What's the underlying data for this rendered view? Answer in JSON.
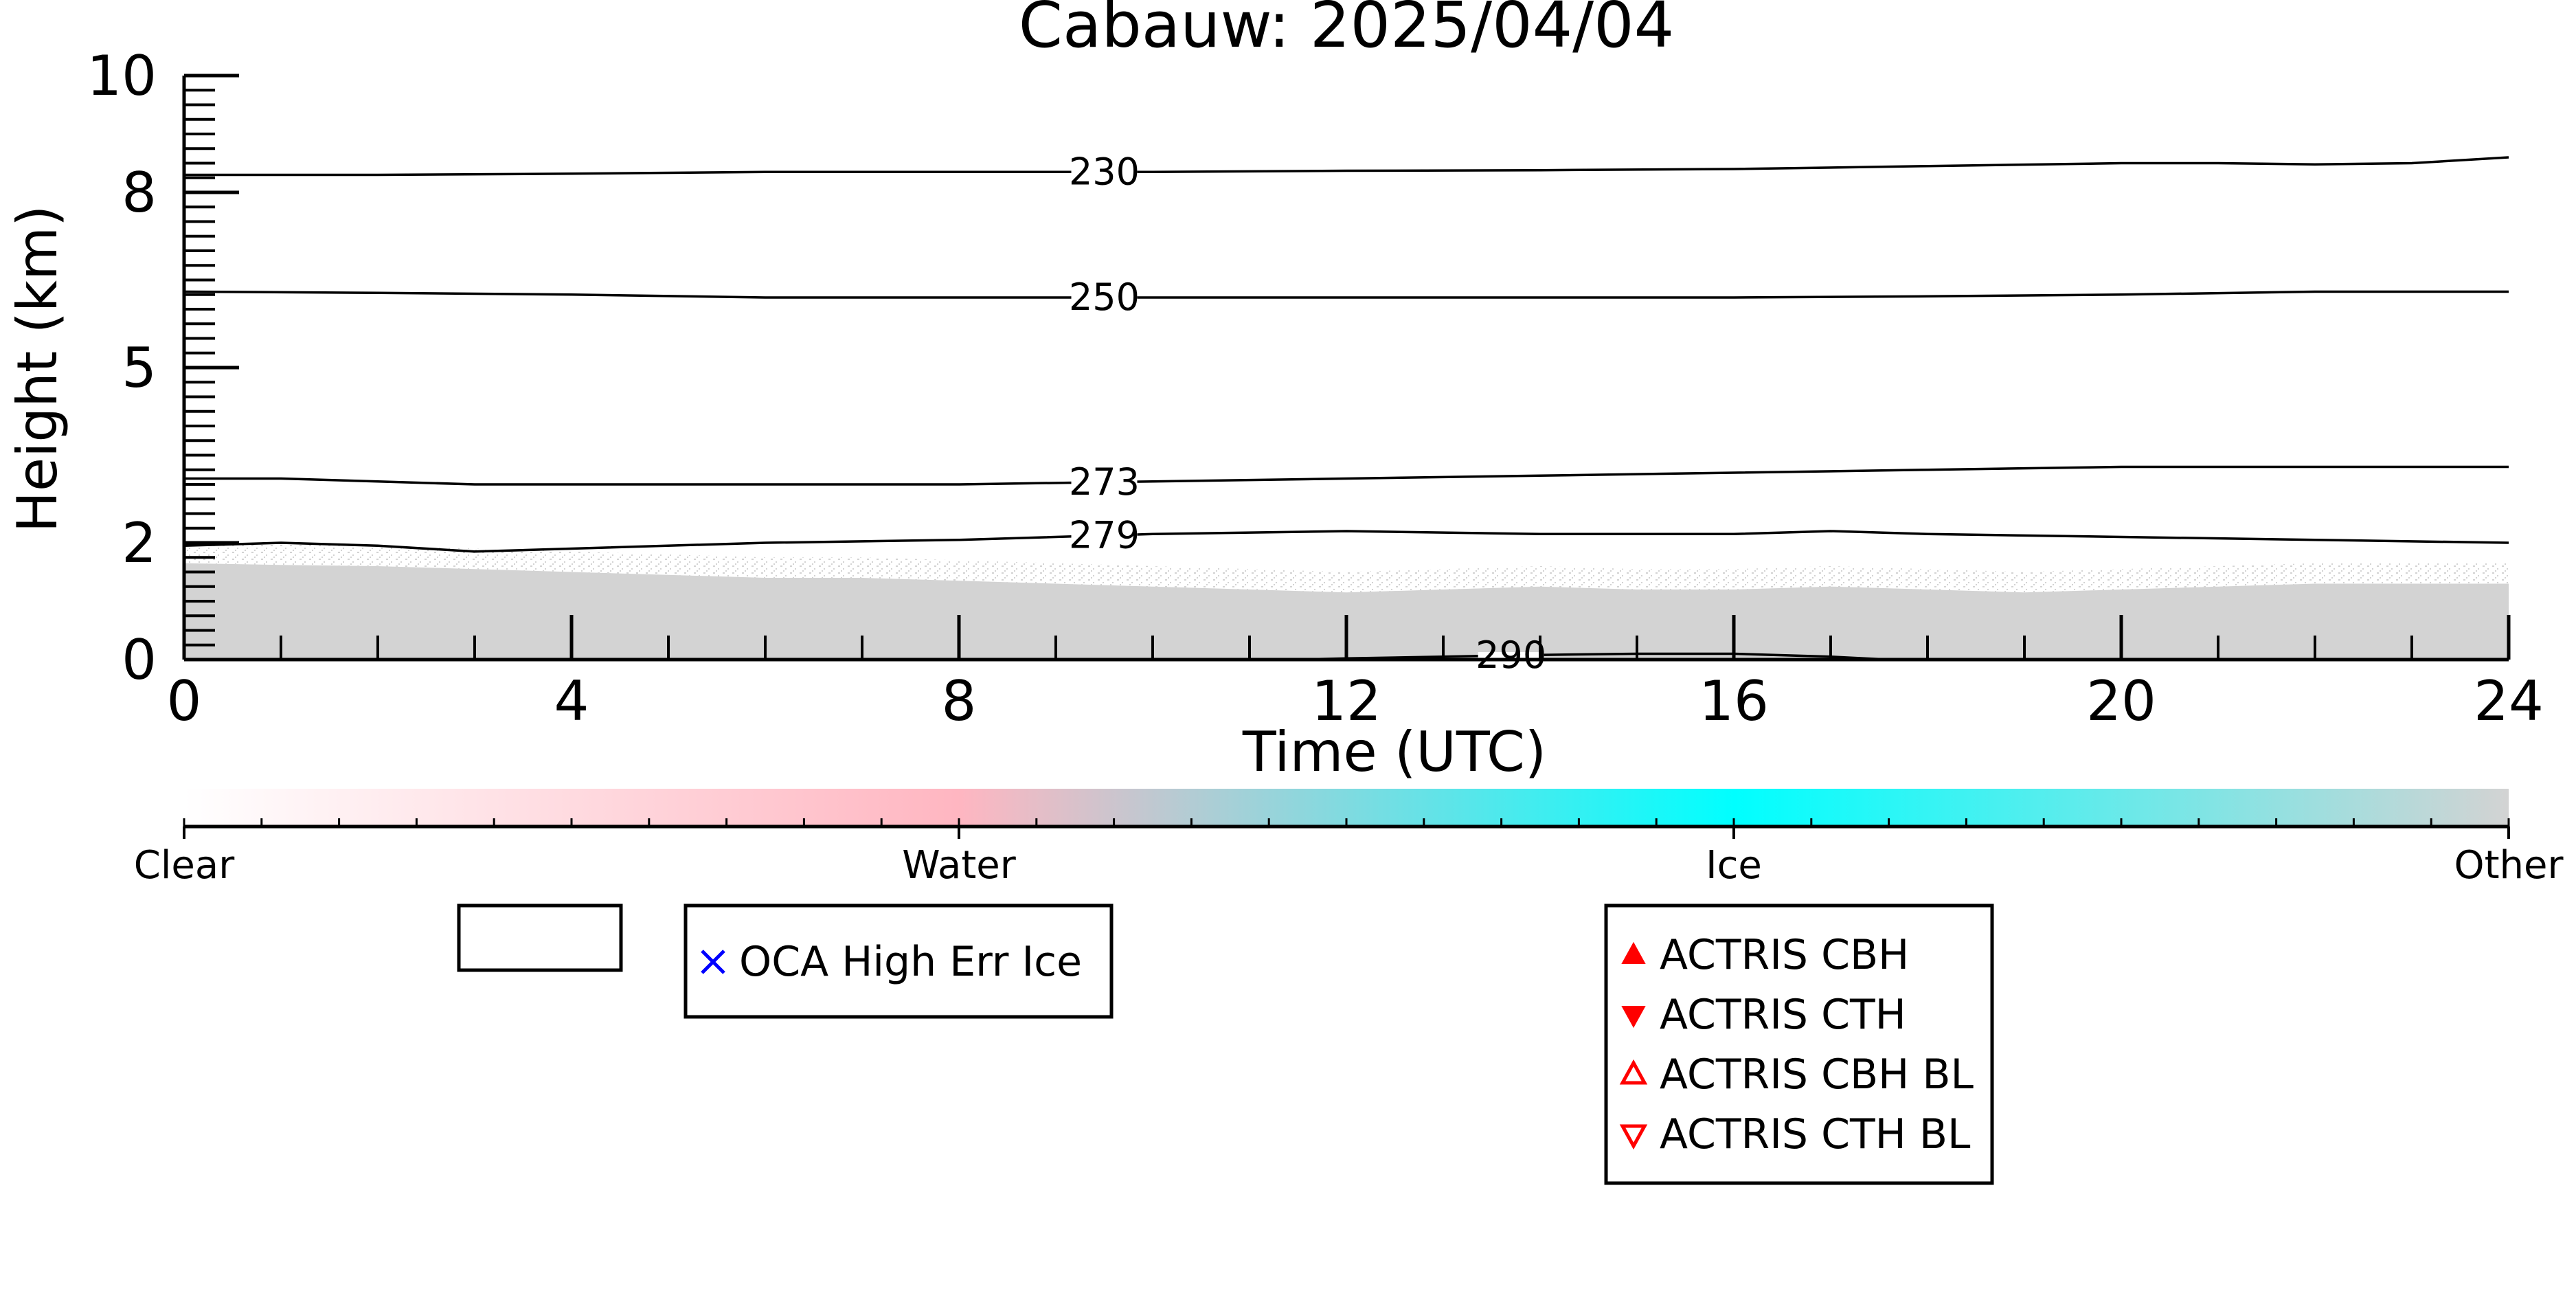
{
  "chart_data": {
    "type": "area",
    "title": "Cabauw: 2025/04/04",
    "xlabel": "Time (UTC)",
    "ylabel": "Height (km)",
    "xlim": [
      0,
      24
    ],
    "ylim": [
      0,
      10
    ],
    "x_ticks": [
      0,
      4,
      8,
      12,
      16,
      20,
      24
    ],
    "y_ticks": [
      0,
      2,
      5,
      8,
      10
    ],
    "y_tick_labels": [
      "0",
      "2",
      "5",
      "8",
      "10"
    ],
    "grid": false,
    "background_echo": {
      "color": "#d3d3d3",
      "x": [
        0,
        1,
        2,
        3,
        4,
        5,
        6,
        7,
        8,
        9,
        10,
        11,
        12,
        13,
        14,
        15,
        16,
        17,
        18,
        19,
        20,
        21,
        22,
        23,
        24
      ],
      "top": [
        1.65,
        1.62,
        1.6,
        1.55,
        1.5,
        1.45,
        1.4,
        1.4,
        1.35,
        1.3,
        1.25,
        1.2,
        1.15,
        1.2,
        1.25,
        1.2,
        1.2,
        1.25,
        1.2,
        1.15,
        1.2,
        1.25,
        1.3,
        1.3,
        1.3
      ]
    },
    "isotherms": [
      {
        "label": "230",
        "x": [
          0,
          2,
          4,
          6,
          8,
          10,
          12,
          14,
          16,
          18,
          20,
          21,
          22,
          23,
          24
        ],
        "y": [
          8.3,
          8.3,
          8.32,
          8.35,
          8.35,
          8.35,
          8.37,
          8.38,
          8.4,
          8.45,
          8.5,
          8.5,
          8.48,
          8.5,
          8.6
        ]
      },
      {
        "label": "250",
        "x": [
          0,
          2,
          4,
          6,
          8,
          10,
          12,
          14,
          16,
          18,
          20,
          22,
          24
        ],
        "y": [
          6.3,
          6.28,
          6.25,
          6.2,
          6.2,
          6.2,
          6.2,
          6.2,
          6.2,
          6.22,
          6.25,
          6.3,
          6.3
        ]
      },
      {
        "label": "273",
        "x": [
          0,
          1,
          2,
          3,
          4,
          6,
          8,
          10,
          12,
          14,
          16,
          18,
          20,
          22,
          24
        ],
        "y": [
          3.1,
          3.1,
          3.05,
          3.0,
          3.0,
          3.0,
          3.0,
          3.05,
          3.1,
          3.15,
          3.2,
          3.25,
          3.3,
          3.3,
          3.3
        ]
      },
      {
        "label": "279",
        "x": [
          0,
          1,
          2,
          3,
          4,
          6,
          8,
          10,
          12,
          14,
          16,
          17,
          18,
          20,
          22,
          24
        ],
        "y": [
          1.95,
          2.0,
          1.95,
          1.85,
          1.9,
          2.0,
          2.05,
          2.15,
          2.2,
          2.15,
          2.15,
          2.2,
          2.15,
          2.1,
          2.05,
          2.0
        ]
      },
      {
        "label": "290",
        "x": [
          11.5,
          12,
          13,
          14,
          15,
          16,
          17,
          17.6
        ],
        "y": [
          0.0,
          0.02,
          0.05,
          0.08,
          0.1,
          0.1,
          0.05,
          0.0
        ]
      }
    ],
    "isotherm_label_x": [
      9.5,
      9.5,
      9.5,
      9.5,
      13.7
    ],
    "colorbar": {
      "labels": [
        "Clear",
        "Water",
        "Ice",
        "Other"
      ],
      "colors": [
        "#ffffff",
        "#ffb6c1",
        "#00ffff",
        "#d3d3d3"
      ]
    },
    "legends": [
      {
        "entries": []
      },
      {
        "entries": [
          {
            "label": "OCA High Err Ice",
            "marker": "x",
            "color": "#0000ff"
          }
        ]
      },
      {
        "entries": [
          {
            "label": "ACTRIS CBH",
            "marker": "triangle-up-filled",
            "color": "#ff0000"
          },
          {
            "label": "ACTRIS CTH",
            "marker": "triangle-down-filled",
            "color": "#ff0000"
          },
          {
            "label": "ACTRIS CBH BL",
            "marker": "triangle-up-open",
            "color": "#ff0000"
          },
          {
            "label": "ACTRIS CTH BL",
            "marker": "triangle-down-open",
            "color": "#ff0000"
          }
        ]
      }
    ]
  }
}
